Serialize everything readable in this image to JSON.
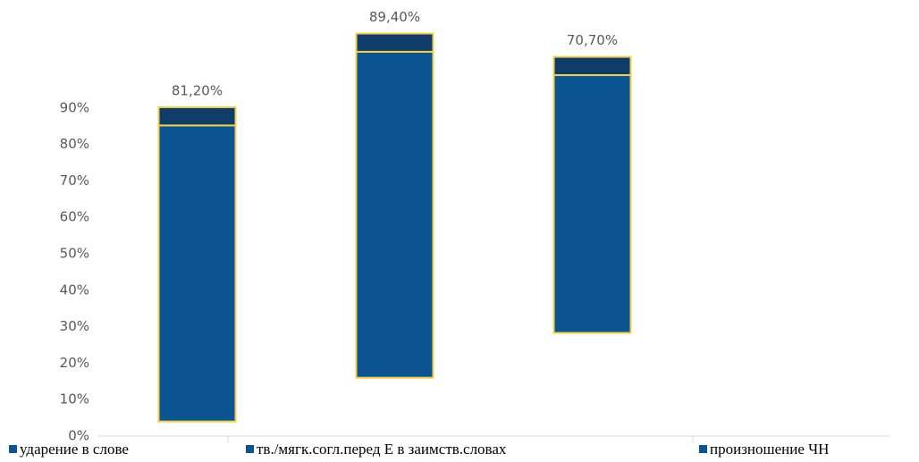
{
  "chart_data": {
    "type": "stacked-bar",
    "categories": [
      "ударение в слове",
      "тв./мягк.согл.перед Е в заимств.словах",
      "произношение ЧН"
    ],
    "series": [
      {
        "color": "transparent",
        "values": [
          4,
          16,
          28.3
        ]
      },
      {
        "color": "#0a5591",
        "values": [
          81.2,
          89.4,
          70.7
        ],
        "value_labels": [
          "81,20%",
          "89,40%",
          "70,70%"
        ]
      },
      {
        "color": "#0f3c69",
        "values": [
          5,
          5,
          5
        ]
      }
    ],
    "border_color": "#f0cf4a",
    "ylim": [
      0,
      112
    ],
    "yticks": [
      {
        "value": 0,
        "label": "0%"
      },
      {
        "value": 10,
        "label": "10%"
      },
      {
        "value": 20,
        "label": "20%"
      },
      {
        "value": 30,
        "label": "30%"
      },
      {
        "value": 40,
        "label": "40%"
      },
      {
        "value": 50,
        "label": "50%"
      },
      {
        "value": 60,
        "label": "60%"
      },
      {
        "value": 70,
        "label": "70%"
      },
      {
        "value": 80,
        "label": "80%"
      },
      {
        "value": 90,
        "label": "90%"
      }
    ],
    "grid": false
  }
}
